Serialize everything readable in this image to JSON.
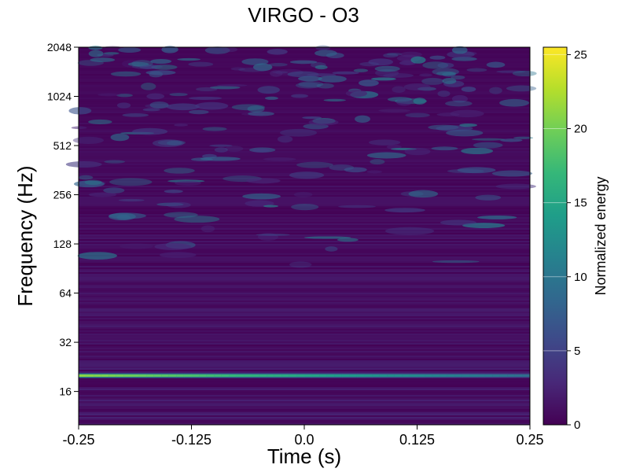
{
  "chart_data": {
    "type": "heatmap",
    "title": "VIRGO - O3",
    "xlabel": "Time (s)",
    "ylabel": "Frequency (Hz)",
    "xlim": [
      -0.25,
      0.25
    ],
    "ylim": [
      10,
      2048
    ],
    "yscale": "log2",
    "x_ticks": [
      -0.25,
      -0.125,
      0.0,
      0.125,
      0.25
    ],
    "x_tick_labels": [
      "-0.25",
      "-0.125",
      "0.0",
      "0.125",
      "0.25"
    ],
    "y_ticks": [
      16,
      32,
      64,
      128,
      256,
      512,
      1024,
      2048
    ],
    "y_tick_labels": [
      "16",
      "32",
      "64",
      "128",
      "256",
      "512",
      "1024",
      "2048"
    ],
    "colorbar": {
      "label": "Normalized energy",
      "range": [
        0,
        25.5
      ],
      "ticks": [
        0,
        5,
        10,
        15,
        20,
        25
      ],
      "tick_labels": [
        "0",
        "5",
        "10",
        "15",
        "20",
        "25"
      ],
      "colormap": "viridis"
    },
    "features": [
      {
        "type": "line",
        "frequency_hz": 20,
        "time_start": -0.25,
        "time_end": 0.25,
        "energy_start": 21,
        "energy_end": 9
      }
    ],
    "background_energy": [
      0,
      4
    ],
    "grid": false,
    "colors": {
      "viridis": [
        "#440154",
        "#482878",
        "#3e4989",
        "#31688e",
        "#26828e",
        "#1f9e89",
        "#35b779",
        "#6ece58",
        "#b5de2b",
        "#fde725"
      ]
    }
  }
}
